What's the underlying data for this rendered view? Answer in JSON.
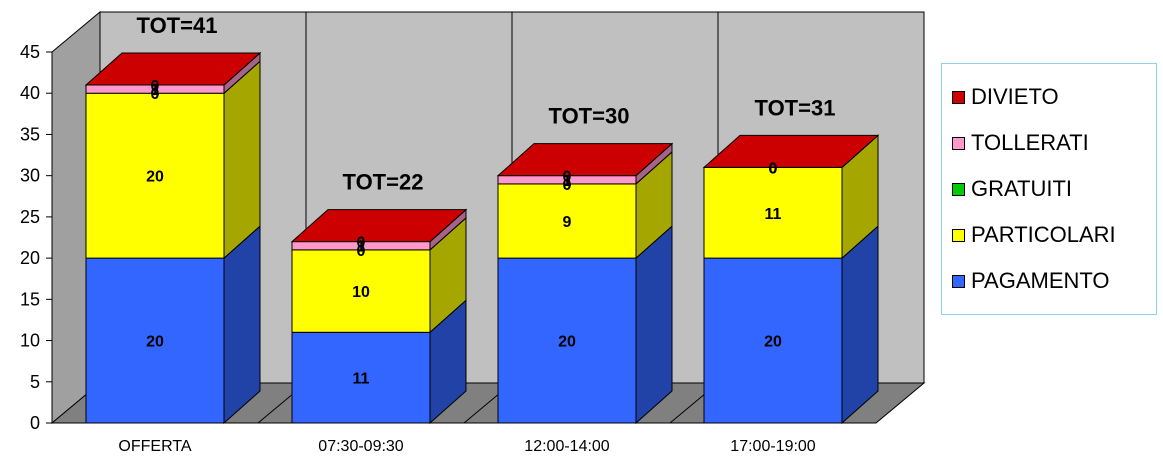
{
  "chart_data": {
    "type": "bar",
    "stacked": true,
    "three_d": true,
    "categories": [
      "OFFERTA",
      "07:30-09:30",
      "12:00-14:00",
      "17:00-19:00"
    ],
    "series": [
      {
        "name": "PAGAMENTO",
        "color": "#3366ff",
        "values": [
          20,
          11,
          20,
          20
        ]
      },
      {
        "name": "PARTICOLARI",
        "color": "#ffff00",
        "values": [
          20,
          10,
          9,
          11
        ]
      },
      {
        "name": "GRATUITI",
        "color": "#00cc00",
        "values": [
          0,
          0,
          0,
          0
        ]
      },
      {
        "name": "TOLLERATI",
        "color": "#ff99cc",
        "values": [
          1,
          1,
          1,
          0
        ]
      },
      {
        "name": "DIVIETO",
        "color": "#cc0000",
        "values": [
          0,
          0,
          0,
          0
        ]
      }
    ],
    "data_labels": [
      [
        "20",
        "20",
        "0",
        "1",
        "0"
      ],
      [
        "11",
        "10",
        "0",
        "1",
        "0"
      ],
      [
        "20",
        "9",
        "0",
        "1",
        "0"
      ],
      [
        "20",
        "11",
        "0",
        "0",
        "0"
      ]
    ],
    "totals": [
      "TOT=41",
      "TOT=22",
      "TOT=30",
      "TOT=31"
    ],
    "y_ticks": [
      "0",
      "5",
      "10",
      "15",
      "20",
      "25",
      "30",
      "35",
      "40",
      "45"
    ],
    "ylim": [
      0,
      45
    ],
    "title": "",
    "xlabel": "",
    "ylabel": "",
    "legend_position": "right",
    "wall_color": "#c0c0c0",
    "grid": "vertical"
  }
}
